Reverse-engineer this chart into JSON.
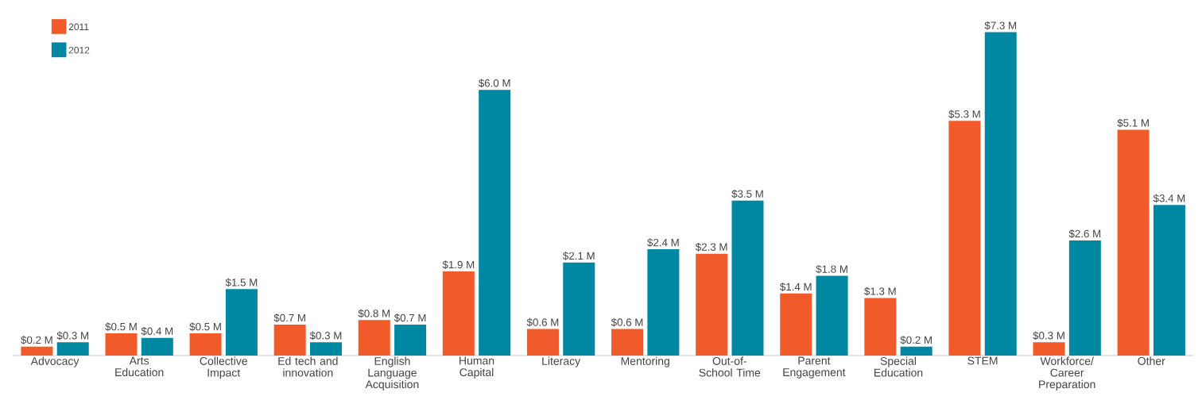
{
  "chart_data": {
    "type": "bar",
    "categories": [
      "Advocacy",
      "Arts Education",
      "Collective Impact",
      "Ed tech and innovation",
      "English Language Acquisition",
      "Human Capital",
      "Literacy",
      "Mentoring",
      "Out-of-School Time",
      "Parent Engagement",
      "Special Education",
      "STEM",
      "Workforce/ Career Preparation",
      "Other"
    ],
    "series": [
      {
        "name": "2011",
        "color": "#f15a29",
        "values": [
          0.2,
          0.5,
          0.5,
          0.7,
          0.8,
          1.9,
          0.6,
          0.6,
          2.3,
          1.4,
          1.3,
          5.3,
          0.3,
          5.1
        ],
        "value_labels": [
          "$0.2 M",
          "$0.5 M",
          "$0.5 M",
          "$0.7 M",
          "$0.8 M",
          "$1.9 M",
          "$0.6 M",
          "$0.6 M",
          "$2.3 M",
          "$1.4 M",
          "$1.3 M",
          "$5.3 M",
          "$0.3 M",
          "$5.1 M"
        ]
      },
      {
        "name": "2012",
        "color": "#0088a3",
        "values": [
          0.3,
          0.4,
          1.5,
          0.3,
          0.7,
          6.0,
          2.1,
          2.4,
          3.5,
          1.8,
          0.2,
          7.3,
          2.6,
          3.4
        ],
        "value_labels": [
          "$0.3 M",
          "$0.4 M",
          "$1.5 M",
          "$0.3 M",
          "$0.7 M",
          "$6.0 M",
          "$2.1 M",
          "$2.4 M",
          "$3.5 M",
          "$1.8 M",
          "$0.2 M",
          "$7.3 M",
          "$2.6 M",
          "$3.4 M"
        ]
      }
    ],
    "legend": "top left",
    "grid": false
  }
}
